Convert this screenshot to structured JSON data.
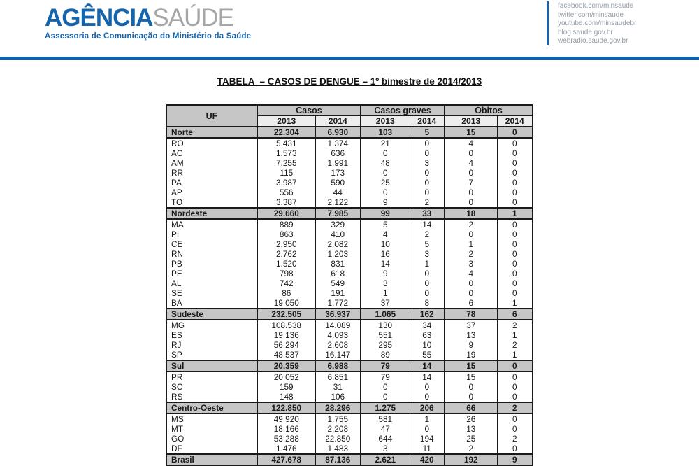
{
  "header": {
    "logo_primary": "AGÊNCIA",
    "logo_secondary": "SAÚDE",
    "logo_subtitle": "Assessoria de Comunicação do Ministério da Saúde",
    "social_links": [
      "facebook.com/minsaude",
      "twitter.com/minsaude",
      "youtube.com/minsaudebr",
      "blog.saude.gov.br",
      "webradio.saude.gov.br"
    ]
  },
  "title": "TABELA  – CASOS DE DENGUE – 1º bimestre de 2014/2013",
  "colors": {
    "brand_blue": "#1565ae",
    "rule_blue": "#1261ad",
    "logo_gray": "#a6a6a6",
    "social_link_gray": "#939ca6",
    "table_header_bg": "#c6c6c6",
    "year_header_bg": "#ededed",
    "table_border": "#1a1a1a"
  },
  "table": {
    "columns": {
      "uf_label": "UF",
      "groups": [
        {
          "label": "Casos"
        },
        {
          "label": "Casos\ngraves"
        },
        {
          "label": "Óbitos"
        }
      ],
      "year_headers": [
        "2013",
        "2014",
        "2013",
        "2014",
        "2013",
        "2014"
      ]
    },
    "rows": [
      {
        "uf": "Norte",
        "type": "region",
        "values": [
          "22.304",
          "6.930",
          "103",
          "5",
          "15",
          "0"
        ]
      },
      {
        "uf": "RO",
        "type": "state",
        "values": [
          "5.431",
          "1.374",
          "21",
          "0",
          "4",
          "0"
        ]
      },
      {
        "uf": "AC",
        "type": "state",
        "values": [
          "1.573",
          "636",
          "0",
          "0",
          "0",
          "0"
        ]
      },
      {
        "uf": "AM",
        "type": "state",
        "values": [
          "7.255",
          "1.991",
          "48",
          "3",
          "4",
          "0"
        ]
      },
      {
        "uf": "RR",
        "type": "state",
        "values": [
          "115",
          "173",
          "0",
          "0",
          "0",
          "0"
        ]
      },
      {
        "uf": "PA",
        "type": "state",
        "values": [
          "3.987",
          "590",
          "25",
          "0",
          "7",
          "0"
        ]
      },
      {
        "uf": "AP",
        "type": "state",
        "values": [
          "556",
          "44",
          "0",
          "0",
          "0",
          "0"
        ]
      },
      {
        "uf": "TO",
        "type": "state",
        "values": [
          "3.387",
          "2.122",
          "9",
          "2",
          "0",
          "0"
        ]
      },
      {
        "uf": "Nordeste",
        "type": "region",
        "values": [
          "29.660",
          "7.985",
          "99",
          "33",
          "18",
          "1"
        ]
      },
      {
        "uf": "MA",
        "type": "state",
        "values": [
          "889",
          "329",
          "5",
          "14",
          "2",
          "0"
        ]
      },
      {
        "uf": "PI",
        "type": "state",
        "values": [
          "863",
          "410",
          "4",
          "2",
          "0",
          "0"
        ]
      },
      {
        "uf": "CE",
        "type": "state",
        "values": [
          "2.950",
          "2.082",
          "10",
          "5",
          "1",
          "0"
        ]
      },
      {
        "uf": "RN",
        "type": "state",
        "values": [
          "2.762",
          "1.203",
          "16",
          "3",
          "2",
          "0"
        ]
      },
      {
        "uf": "PB",
        "type": "state",
        "values": [
          "1.520",
          "831",
          "14",
          "1",
          "3",
          "0"
        ]
      },
      {
        "uf": "PE",
        "type": "state",
        "values": [
          "798",
          "618",
          "9",
          "0",
          "4",
          "0"
        ]
      },
      {
        "uf": "AL",
        "type": "state",
        "values": [
          "742",
          "549",
          "3",
          "0",
          "0",
          "0"
        ]
      },
      {
        "uf": "SE",
        "type": "state",
        "values": [
          "86",
          "191",
          "1",
          "0",
          "0",
          "0"
        ]
      },
      {
        "uf": "BA",
        "type": "state",
        "values": [
          "19.050",
          "1.772",
          "37",
          "8",
          "6",
          "1"
        ]
      },
      {
        "uf": "Sudeste",
        "type": "region",
        "values": [
          "232.505",
          "36.937",
          "1.065",
          "162",
          "78",
          "6"
        ]
      },
      {
        "uf": "MG",
        "type": "state",
        "values": [
          "108.538",
          "14.089",
          "130",
          "34",
          "37",
          "2"
        ]
      },
      {
        "uf": "ES",
        "type": "state",
        "values": [
          "19.136",
          "4.093",
          "551",
          "63",
          "13",
          "1"
        ]
      },
      {
        "uf": "RJ",
        "type": "state",
        "values": [
          "56.294",
          "2.608",
          "295",
          "10",
          "9",
          "2"
        ]
      },
      {
        "uf": "SP",
        "type": "state",
        "values": [
          "48.537",
          "16.147",
          "89",
          "55",
          "19",
          "1"
        ]
      },
      {
        "uf": "Sul",
        "type": "region",
        "values": [
          "20.359",
          "6.988",
          "79",
          "14",
          "15",
          "0"
        ]
      },
      {
        "uf": "PR",
        "type": "state",
        "values": [
          "20.052",
          "6.851",
          "79",
          "14",
          "15",
          "0"
        ]
      },
      {
        "uf": "SC",
        "type": "state",
        "values": [
          "159",
          "31",
          "0",
          "0",
          "0",
          "0"
        ]
      },
      {
        "uf": "RS",
        "type": "state",
        "values": [
          "148",
          "106",
          "0",
          "0",
          "0",
          "0"
        ]
      },
      {
        "uf": "Centro-Oeste",
        "type": "region",
        "values": [
          "122.850",
          "28.296",
          "1.275",
          "206",
          "66",
          "2"
        ]
      },
      {
        "uf": "MS",
        "type": "state",
        "values": [
          "49.920",
          "1.755",
          "581",
          "1",
          "26",
          "0"
        ]
      },
      {
        "uf": "MT",
        "type": "state",
        "values": [
          "18.166",
          "2.208",
          "47",
          "0",
          "13",
          "0"
        ]
      },
      {
        "uf": "GO",
        "type": "state",
        "values": [
          "53.288",
          "22.850",
          "644",
          "194",
          "25",
          "2"
        ]
      },
      {
        "uf": "DF",
        "type": "state",
        "values": [
          "1.476",
          "1.483",
          "3",
          "11",
          "2",
          "0"
        ]
      },
      {
        "uf": "Brasil",
        "type": "region",
        "values": [
          "427.678",
          "87.136",
          "2.621",
          "420",
          "192",
          "9"
        ]
      }
    ]
  }
}
